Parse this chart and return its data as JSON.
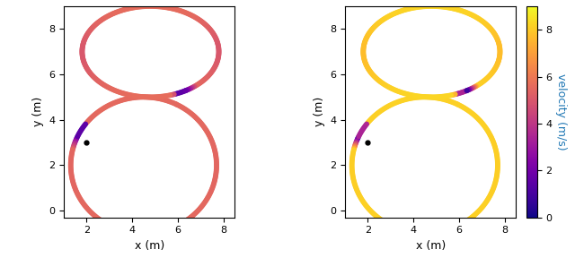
{
  "xlim": [
    1.0,
    8.5
  ],
  "ylim": [
    -0.3,
    9.0
  ],
  "xlabel": "x (m)",
  "ylabel": "y (m)",
  "cbar_label": "velocity (m/s)",
  "cbar_ticks": [
    0,
    2,
    4,
    6,
    8
  ],
  "v_min": 0,
  "v_max": 9,
  "cmap_left": "plasma",
  "cmap_right": "plasma",
  "marker_size": 18,
  "start_dot_x": 2.0,
  "start_dot_y": 3.0,
  "background_color": "#ffffff"
}
